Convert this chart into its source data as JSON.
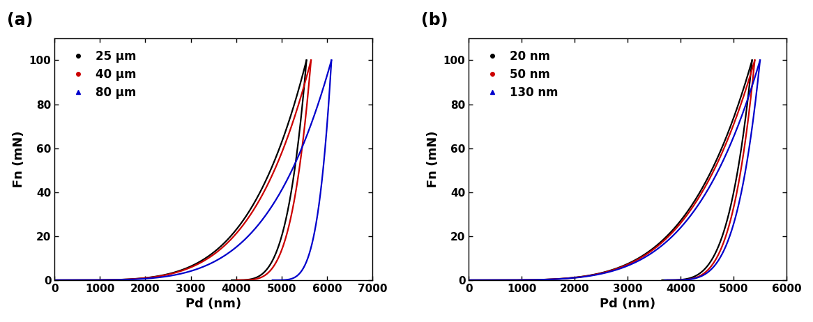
{
  "panel_a": {
    "label": "(a)",
    "xlabel": "Pd (nm)",
    "ylabel": "Fn (mN)",
    "xlim": [
      0,
      7000
    ],
    "ylim": [
      0,
      110
    ],
    "xticks": [
      0,
      1000,
      2000,
      3000,
      4000,
      5000,
      6000,
      7000
    ],
    "yticks": [
      0,
      20,
      40,
      60,
      80,
      100
    ],
    "curves": [
      {
        "label": "25 μm",
        "color": "#000000",
        "marker": ".",
        "load_x_end": 5550,
        "unload_x_end": 3900,
        "load_power": 4.5,
        "unload_power": 4.0
      },
      {
        "label": "40 μm",
        "color": "#cc0000",
        "marker": ".",
        "load_x_end": 5650,
        "unload_x_end": 4000,
        "load_power": 4.5,
        "unload_power": 4.0
      },
      {
        "label": "80 μm",
        "color": "#0000cc",
        "marker": "^",
        "load_x_end": 6100,
        "unload_x_end": 4800,
        "load_power": 4.5,
        "unload_power": 4.5
      }
    ]
  },
  "panel_b": {
    "label": "(b)",
    "xlabel": "Pd (nm)",
    "ylabel": "Fn (mN)",
    "xlim": [
      0,
      6000
    ],
    "ylim": [
      0,
      110
    ],
    "xticks": [
      0,
      1000,
      2000,
      3000,
      4000,
      5000,
      6000
    ],
    "yticks": [
      0,
      20,
      40,
      60,
      80,
      100
    ],
    "curves": [
      {
        "label": "20 nm",
        "color": "#000000",
        "marker": ".",
        "load_x_end": 5350,
        "unload_x_end": 3650,
        "load_power": 4.5,
        "unload_power": 4.0
      },
      {
        "label": "50 nm",
        "color": "#cc0000",
        "marker": ".",
        "load_x_end": 5400,
        "unload_x_end": 3750,
        "load_power": 4.5,
        "unload_power": 4.0
      },
      {
        "label": "130 nm",
        "color": "#0000cc",
        "marker": "^",
        "load_x_end": 5500,
        "unload_x_end": 3700,
        "load_power": 4.5,
        "unload_power": 4.2
      }
    ]
  },
  "figsize": [
    11.66,
    4.62
  ],
  "dpi": 100,
  "background_color": "#ffffff",
  "label_fontsize": 13,
  "tick_fontsize": 11,
  "legend_fontsize": 12,
  "panel_label_fontsize": 17,
  "line_width": 1.6
}
